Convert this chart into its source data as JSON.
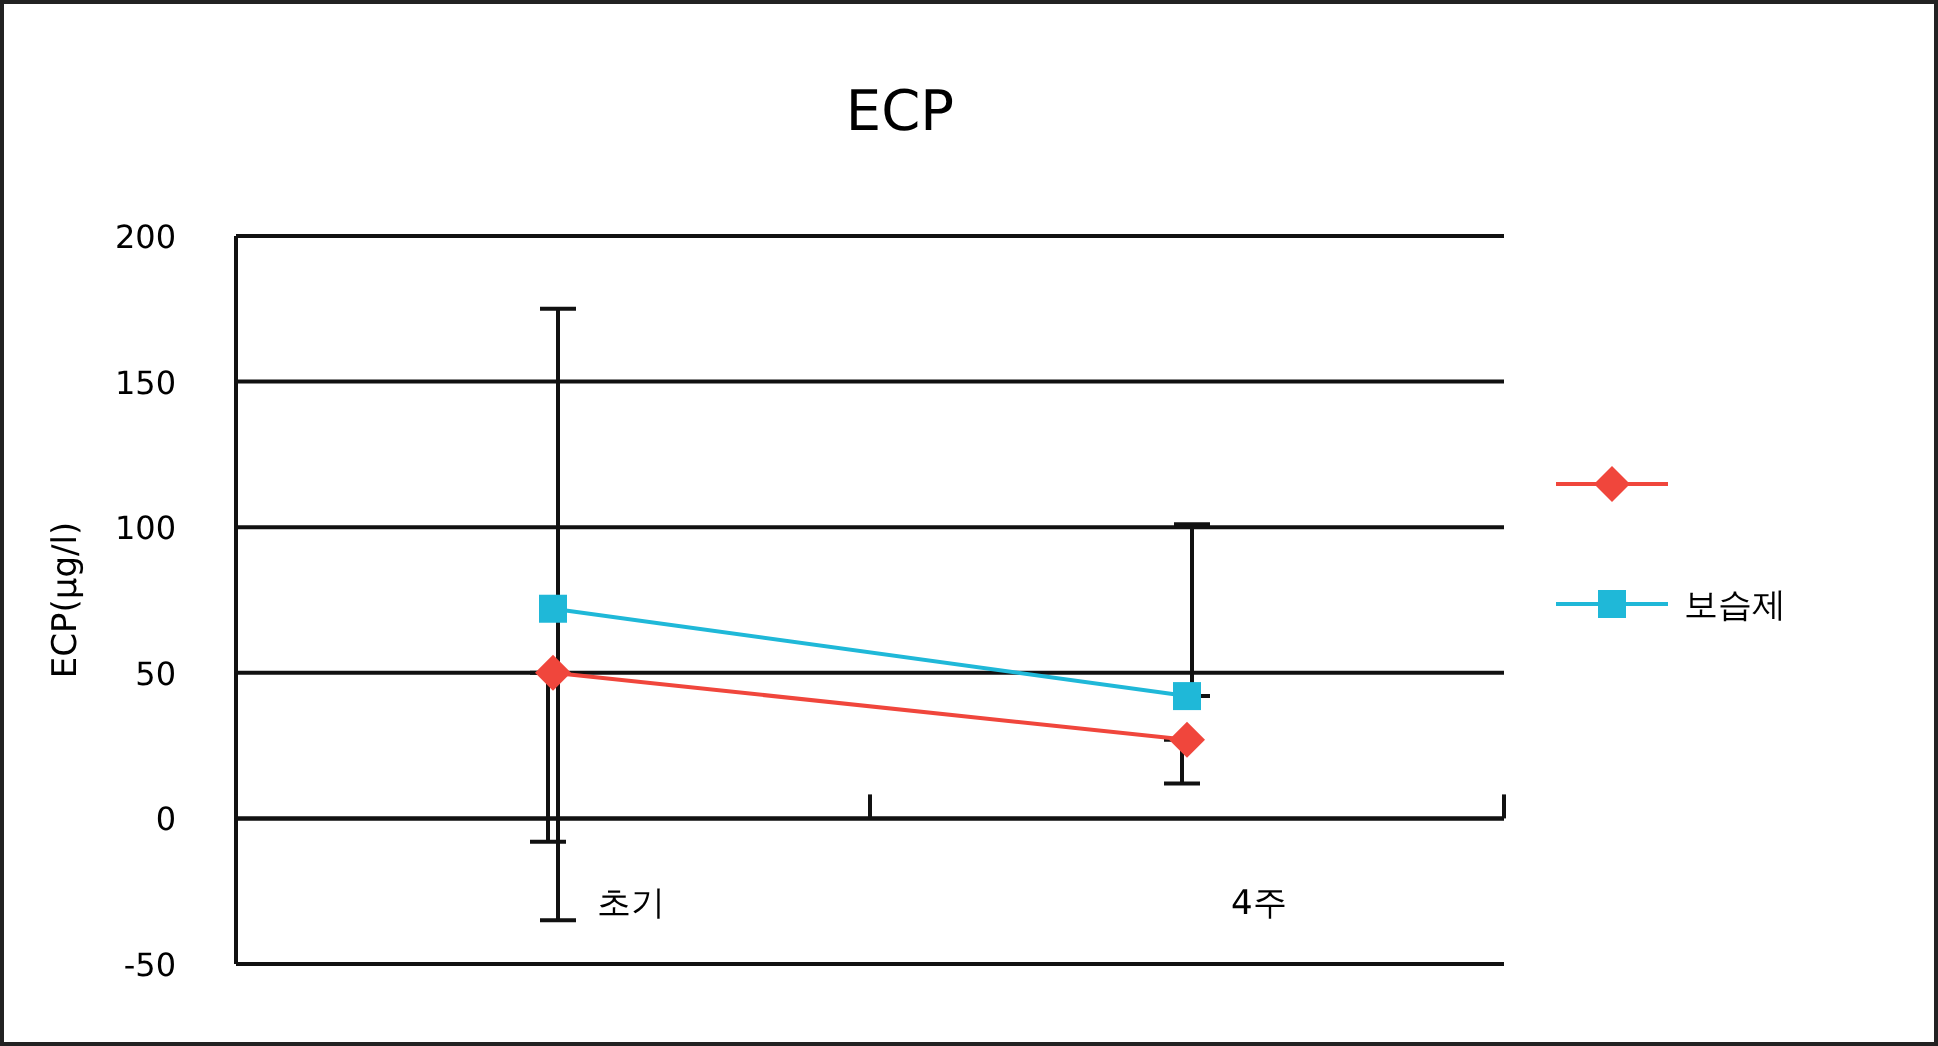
{
  "chart_data": {
    "type": "line",
    "title": "ECP",
    "ylabel": "ECP(μg/l)",
    "categories": [
      "초기",
      "4주"
    ],
    "series": [
      {
        "color": "#f0463c",
        "marker": "diamond",
        "values": [
          50,
          27
        ],
        "errors": [
          [
            -8,
            50
          ],
          [
            12,
            27
          ]
        ]
      },
      {
        "name": "보습제",
        "color": "#1fb8d8",
        "marker": "square",
        "values": [
          72,
          42
        ],
        "errors": [
          [
            -35,
            175
          ],
          [
            42,
            101
          ]
        ]
      }
    ],
    "ylim": [
      -50,
      200
    ],
    "yticks": [
      -50,
      0,
      50,
      100,
      150,
      200
    ],
    "grid": "y",
    "legend": "right"
  }
}
